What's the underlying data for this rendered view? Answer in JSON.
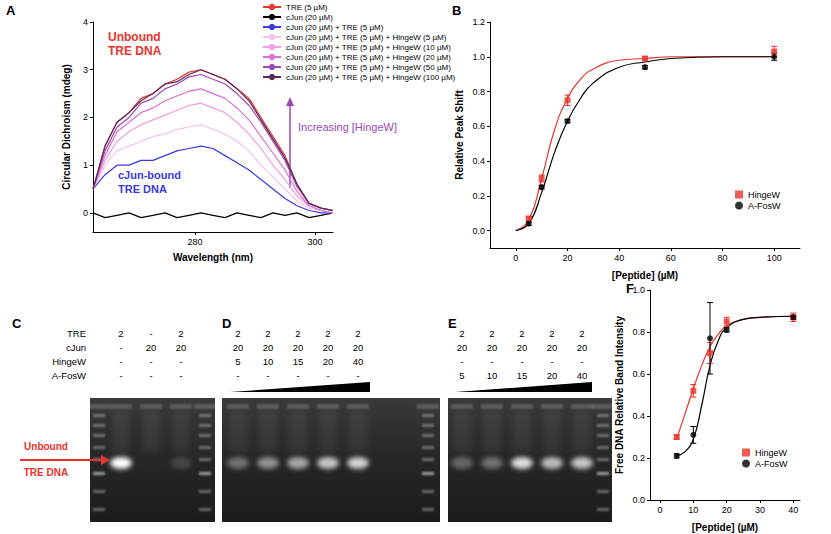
{
  "chart_data": [
    {
      "type": "line",
      "panel": "A",
      "x_label": "Wavelength (nm)",
      "y_label": "Circular Dichroism (mdeg)",
      "x": [
        263,
        265,
        267,
        269,
        271,
        273,
        275,
        277,
        279,
        281,
        283,
        285,
        287,
        289,
        291,
        293,
        295,
        297,
        299,
        301,
        303
      ],
      "xlim": [
        263,
        303
      ],
      "xticks": [
        280,
        300
      ],
      "ylim": [
        -0.4,
        4
      ],
      "yticks": [
        0,
        1,
        2,
        3,
        4
      ],
      "grid": false,
      "legend": "top-right",
      "series": [
        {
          "name": "TRE (5 µM)",
          "color": "#e8342c",
          "values": [
            0.5,
            1.4,
            1.9,
            2.1,
            2.4,
            2.5,
            2.7,
            2.8,
            2.95,
            3.0,
            2.9,
            2.8,
            2.6,
            2.4,
            2.0,
            1.6,
            1.2,
            0.6,
            0.2,
            0.1,
            0.05
          ]
        },
        {
          "name": "cJun (20 µM)",
          "color": "#000000",
          "values": [
            0.0,
            -0.1,
            -0.05,
            0.0,
            -0.1,
            -0.05,
            0.0,
            -0.1,
            -0.05,
            0.0,
            -0.05,
            -0.1,
            0.0,
            -0.05,
            -0.1,
            0.0,
            -0.05,
            0.0,
            -0.1,
            -0.05,
            0.0
          ]
        },
        {
          "name": "cJun (20 µM) + TRE (5 µM)",
          "color": "#3a3adf",
          "values": [
            0.5,
            0.8,
            1.0,
            1.0,
            1.1,
            1.1,
            1.2,
            1.3,
            1.35,
            1.4,
            1.35,
            1.2,
            1.05,
            0.9,
            0.7,
            0.5,
            0.3,
            0.15,
            0.05,
            0.0,
            0.0
          ]
        },
        {
          "name": "cJun (20 µM) + TRE (5 µM) + HingeW (5 µM)",
          "color": "#f2c4ec",
          "values": [
            0.5,
            1.0,
            1.3,
            1.4,
            1.5,
            1.6,
            1.65,
            1.75,
            1.8,
            1.85,
            1.75,
            1.65,
            1.5,
            1.3,
            1.0,
            0.75,
            0.5,
            0.25,
            0.1,
            0.05,
            0.0
          ]
        },
        {
          "name": "cJun (20 µM) + TRE (5 µM) + HingeW (10 µM)",
          "color": "#ee9ee2",
          "values": [
            0.5,
            1.1,
            1.5,
            1.7,
            1.85,
            1.95,
            2.05,
            2.15,
            2.25,
            2.3,
            2.2,
            2.1,
            1.9,
            1.65,
            1.35,
            1.0,
            0.7,
            0.35,
            0.15,
            0.05,
            0.0
          ]
        },
        {
          "name": "cJun (20 µM) + TRE (5 µM) + HingeW (20 µM)",
          "color": "#dd6fd2",
          "values": [
            0.5,
            1.2,
            1.7,
            1.9,
            2.1,
            2.2,
            2.35,
            2.45,
            2.55,
            2.6,
            2.5,
            2.4,
            2.2,
            1.95,
            1.6,
            1.25,
            0.9,
            0.45,
            0.15,
            0.05,
            0.0
          ]
        },
        {
          "name": "cJun (20 µM) + TRE (5 µM) + HingeW (50 µM)",
          "color": "#9a48b6",
          "values": [
            0.5,
            1.3,
            1.8,
            2.0,
            2.3,
            2.4,
            2.6,
            2.7,
            2.85,
            2.9,
            2.8,
            2.7,
            2.5,
            2.25,
            1.9,
            1.5,
            1.1,
            0.55,
            0.2,
            0.1,
            0.05
          ]
        },
        {
          "name": "cJun (20 µM) + TRE (5 µM) + HingeW (100 µM)",
          "color": "#5a2a58",
          "values": [
            0.5,
            1.4,
            1.9,
            2.1,
            2.35,
            2.5,
            2.7,
            2.75,
            2.9,
            3.0,
            2.9,
            2.8,
            2.6,
            2.35,
            1.95,
            1.55,
            1.15,
            0.6,
            0.2,
            0.1,
            0.05
          ]
        }
      ],
      "annotations": [
        {
          "text": "Unbound\nTRE DNA",
          "color": "#e8342c"
        },
        {
          "text": "cJun-bound\nTRE DNA",
          "color": "#3a3adf"
        },
        {
          "text": "Increasing [HingeW]",
          "color": "#9a48b6"
        }
      ]
    },
    {
      "type": "scatter",
      "panel": "B",
      "x_label": "[Peptide] (µM)",
      "y_label": "Relative Peak Shift",
      "xlim": [
        -10,
        110
      ],
      "xticks": [
        0,
        20,
        40,
        60,
        80,
        100
      ],
      "ylim": [
        -0.1,
        1.2
      ],
      "yticks": [
        {
          "value": 0,
          "label": "0.0"
        },
        0.2,
        0.4,
        0.6,
        0.8,
        {
          "value": 1,
          "label": "1.0"
        },
        1.2
      ],
      "grid": false,
      "legend": "bottom-right",
      "series": [
        {
          "name": "HingeW",
          "color": "#e8342c",
          "marker": "square",
          "x": [
            5,
            10,
            20,
            50,
            100
          ],
          "values": [
            0.07,
            0.3,
            0.75,
            0.99,
            1.03
          ],
          "errors": [
            0.01,
            0.02,
            0.03,
            0.01,
            0.03
          ],
          "fit": {
            "x": [
              0,
              5,
              10,
              15,
              20,
              25,
              30,
              40,
              50,
              60,
              80,
              100
            ],
            "values": [
              0.0,
              0.06,
              0.3,
              0.58,
              0.76,
              0.87,
              0.93,
              0.98,
              0.99,
              1.0,
              1.0,
              1.0
            ]
          }
        },
        {
          "name": "A-FosW",
          "color": "#000000",
          "marker": "circle",
          "x": [
            5,
            10,
            20,
            50,
            100
          ],
          "values": [
            0.04,
            0.25,
            0.63,
            0.94,
            1.0
          ],
          "errors": [
            0.01,
            0.01,
            0.01,
            0.01,
            0.02
          ],
          "fit": {
            "x": [
              0,
              5,
              10,
              15,
              20,
              25,
              30,
              40,
              50,
              60,
              80,
              100
            ],
            "values": [
              0.0,
              0.04,
              0.22,
              0.45,
              0.63,
              0.76,
              0.85,
              0.94,
              0.97,
              0.99,
              1.0,
              1.0
            ]
          }
        }
      ]
    },
    {
      "type": "scatter",
      "panel": "F",
      "x_label": "[Peptide] (µM)",
      "y_label": "Free DNA Relative Band Intensity",
      "xlim": [
        -3,
        42
      ],
      "xticks": [
        0,
        10,
        20,
        30,
        40
      ],
      "ylim": [
        0,
        1
      ],
      "yticks": [
        {
          "value": 0,
          "label": "0.0"
        },
        0.2,
        0.4,
        0.6,
        0.8,
        {
          "value": 1,
          "label": "1.0"
        }
      ],
      "grid": false,
      "legend": "bottom-right",
      "series": [
        {
          "name": "HingeW",
          "color": "#e8342c",
          "marker": "square",
          "x": [
            5,
            10,
            15,
            20,
            40
          ],
          "values": [
            0.3,
            0.52,
            0.7,
            0.85,
            0.87
          ],
          "errors": [
            0.01,
            0.03,
            0.05,
            0.02,
            0.02
          ],
          "fit": {
            "x": [
              5,
              7.5,
              10,
              12.5,
              15,
              17.5,
              20,
              25,
              30,
              40
            ],
            "values": [
              0.29,
              0.41,
              0.53,
              0.64,
              0.73,
              0.79,
              0.83,
              0.86,
              0.87,
              0.875
            ]
          }
        },
        {
          "name": "A-FosW",
          "color": "#000000",
          "marker": "circle",
          "x": [
            5,
            10,
            15,
            20,
            40
          ],
          "values": [
            0.21,
            0.31,
            0.77,
            0.81,
            0.87
          ],
          "errors": [
            0.01,
            0.04,
            0.17,
            0.01,
            0.01
          ],
          "fit": {
            "x": [
              5,
              7.5,
              10,
              12.5,
              15,
              17.5,
              20,
              25,
              30,
              40
            ],
            "values": [
              0.21,
              0.23,
              0.29,
              0.45,
              0.64,
              0.76,
              0.82,
              0.86,
              0.87,
              0.875
            ]
          }
        }
      ]
    }
  ],
  "gel_rows": [
    "TRE",
    "cJun",
    "HingeW",
    "A-FosW"
  ],
  "gels": [
    {
      "panel": "C",
      "values": [
        [
          2,
          "-",
          2
        ],
        [
          "-",
          20,
          20
        ],
        [
          "-",
          "-",
          "-"
        ],
        [
          "-",
          "-",
          "-"
        ]
      ],
      "free_band": [
        1.0,
        0.0,
        0.15
      ]
    },
    {
      "panel": "D",
      "values": [
        [
          2,
          2,
          2,
          2,
          2
        ],
        [
          20,
          20,
          20,
          20,
          20
        ],
        [
          5,
          10,
          15,
          20,
          40
        ],
        [
          "-",
          "-",
          "-",
          "-",
          "-"
        ]
      ],
      "free_band": [
        0.35,
        0.5,
        0.6,
        0.75,
        0.8
      ]
    },
    {
      "panel": "E",
      "values": [
        [
          2,
          2,
          2,
          2,
          2
        ],
        [
          20,
          20,
          20,
          20,
          20
        ],
        [
          "-",
          "-",
          "-",
          "-",
          "-"
        ],
        [
          5,
          10,
          15,
          20,
          40
        ]
      ],
      "free_band": [
        0.3,
        0.35,
        0.85,
        0.7,
        0.75
      ]
    }
  ],
  "gel_annotation": {
    "text": "Unbound\nTRE DNA",
    "color": "#e8342c"
  }
}
